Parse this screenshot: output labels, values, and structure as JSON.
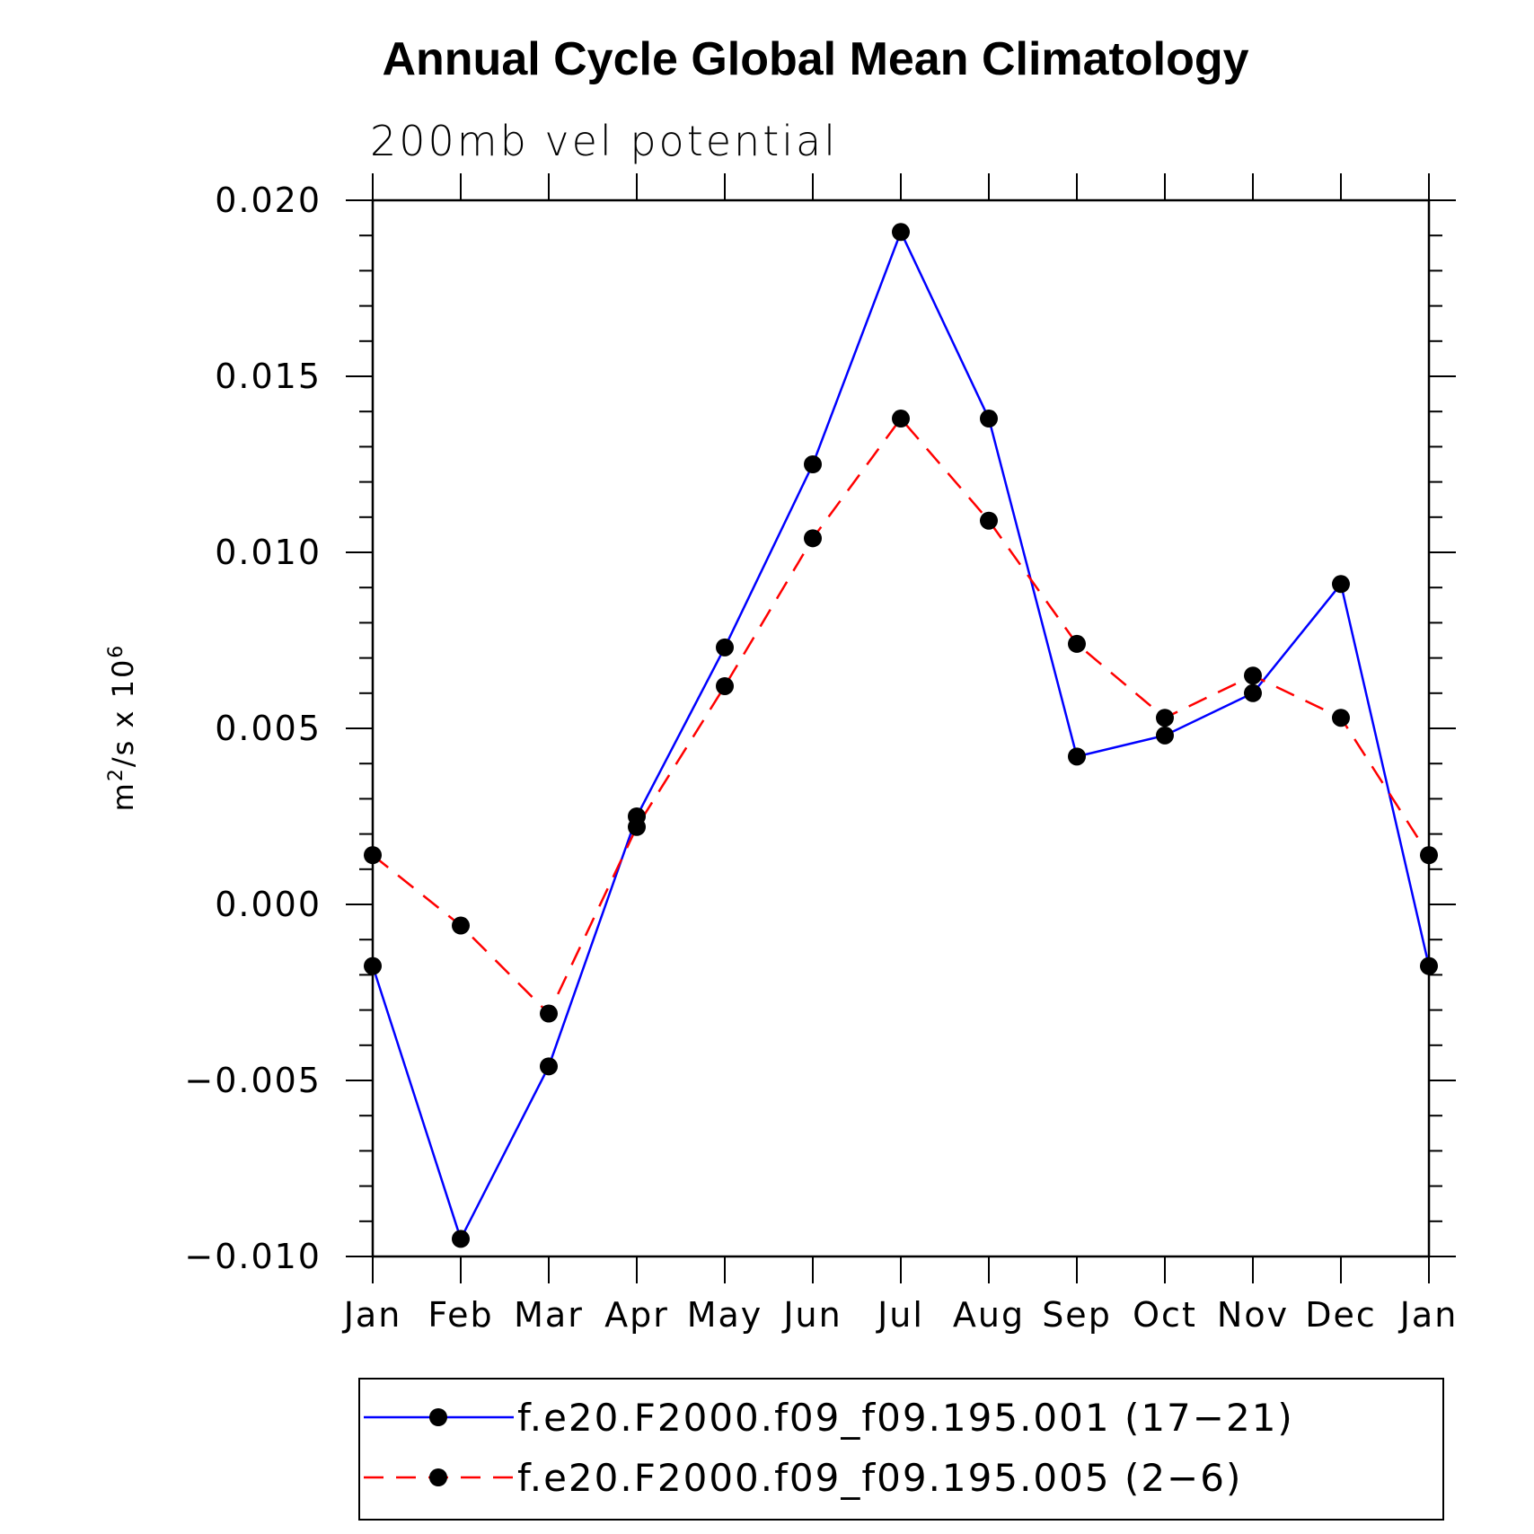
{
  "chart_data": {
    "type": "line",
    "title": "Annual Cycle Global Mean Climatology",
    "subtitle": "200mb vel potential",
    "ylabel": "m²/s x 10⁶",
    "ylabel_base": "m",
    "ylabel_sup1": "2",
    "ylabel_mid": "/s x 10",
    "ylabel_sup2": "6",
    "ylim": [
      -0.01,
      0.02
    ],
    "yticks": [
      -0.01,
      -0.005,
      0.0,
      0.005,
      0.01,
      0.015,
      0.02
    ],
    "ytick_labels": [
      "−0.010",
      "−0.005",
      "0.000",
      "0.005",
      "0.010",
      "0.015",
      "0.020"
    ],
    "categories": [
      "Jan",
      "Feb",
      "Mar",
      "Apr",
      "May",
      "Jun",
      "Jul",
      "Aug",
      "Sep",
      "Oct",
      "Nov",
      "Dec",
      "Jan"
    ],
    "series": [
      {
        "name": "f.e20.F2000.f09_f09.195.001 (17−21)",
        "color": "#0000ff",
        "style": "solid",
        "values": [
          -0.00175,
          -0.0095,
          -0.0046,
          0.0025,
          0.0073,
          0.0125,
          0.0191,
          0.0138,
          0.0042,
          0.0048,
          0.006,
          0.0091,
          -0.00175
        ]
      },
      {
        "name": "f.e20.F2000.f09_f09.195.005 (2−6)",
        "color": "#ff0000",
        "style": "dashed",
        "values": [
          0.0014,
          -0.0006,
          -0.0031,
          0.0022,
          0.0062,
          0.0104,
          0.0138,
          0.0109,
          0.0074,
          0.0053,
          0.0065,
          0.0053,
          0.0014
        ]
      }
    ],
    "legend_position": "bottom",
    "marker": "filled-circle",
    "marker_color": "#000000"
  }
}
